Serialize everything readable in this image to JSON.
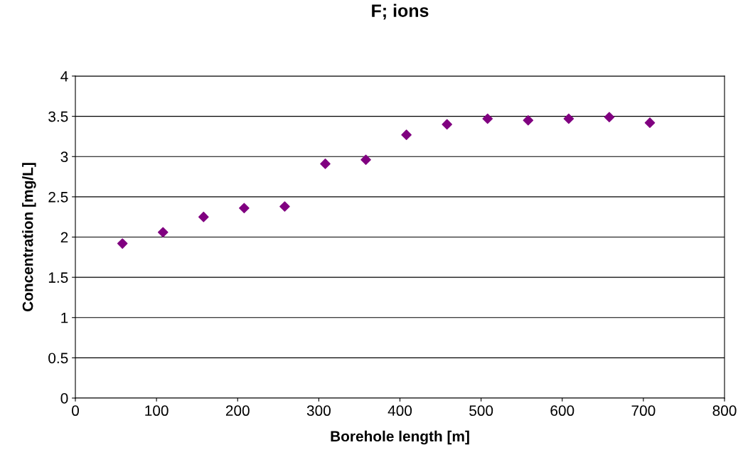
{
  "chart_data": {
    "type": "scatter",
    "title": "F; ions",
    "xlabel": "Borehole length [m]",
    "ylabel": "Concentration [mg/L]",
    "x": [
      58,
      108,
      158,
      208,
      258,
      308,
      358,
      408,
      458,
      508,
      558,
      608,
      658,
      708
    ],
    "series": [
      {
        "color": "#800080",
        "values": [
          1.92,
          2.06,
          2.25,
          2.36,
          2.38,
          2.91,
          2.96,
          3.27,
          3.4,
          3.47,
          3.45,
          3.47,
          3.49,
          3.42
        ]
      }
    ],
    "xlim": [
      0,
      800
    ],
    "xticks": [
      0,
      100,
      200,
      300,
      400,
      500,
      600,
      700,
      800
    ],
    "ylim": [
      0,
      4
    ],
    "yticks": [
      0,
      0.5,
      1,
      1.5,
      2,
      2.5,
      3,
      3.5,
      4
    ],
    "grid": "y",
    "marker": "diamond",
    "legend": false
  }
}
